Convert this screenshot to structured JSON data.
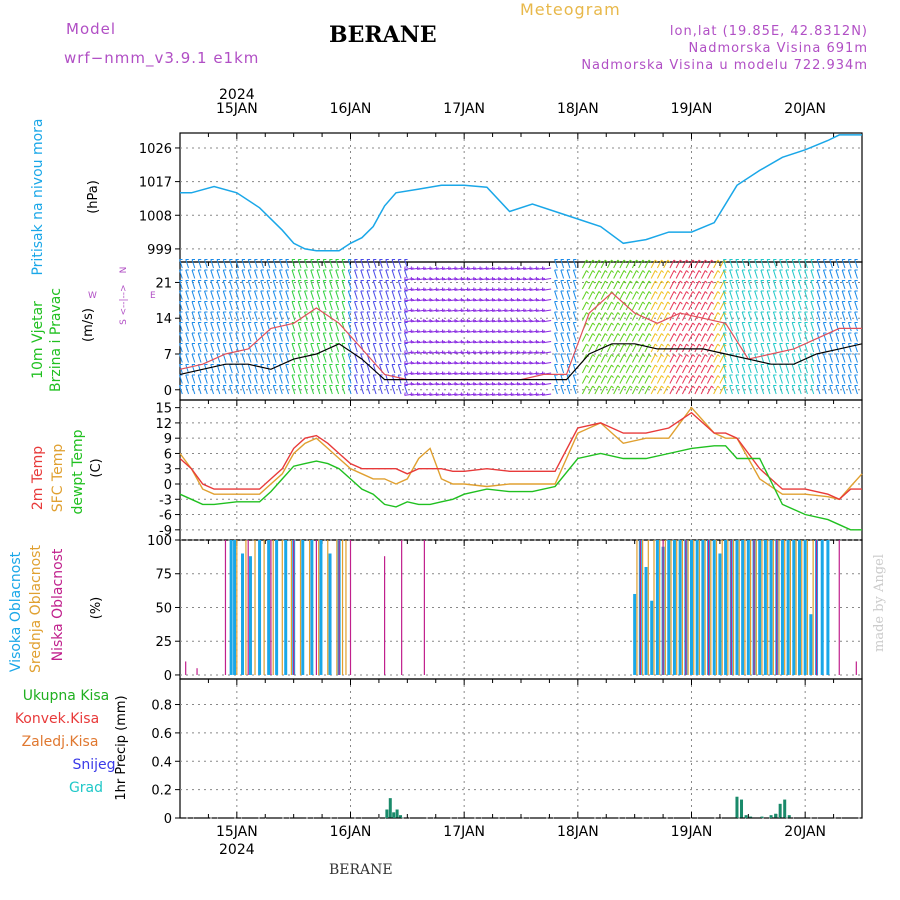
{
  "header": {
    "model_label": "Model",
    "model_name": "wrf−nmm_v3.9.1 e1km",
    "station": "BERANE",
    "title": "Meteogram",
    "lonlat": "lon,lat (19.85E, 42.8312N)",
    "elevation": "Nadmorska Visina 691m",
    "model_elevation": "Nadmorska Visina u modelu 722.934m",
    "footer_station": "BERANE",
    "watermark": "made by Angel"
  },
  "colors": {
    "pressure": "#1aa7e8",
    "temp2m": "#e83a3a",
    "sfc": "#e0a030",
    "dewpt": "#20c020",
    "high": "#1aa7e8",
    "mid": "#e0a030",
    "low": "#c0208c",
    "purple": "#b14fc5"
  },
  "chart_data": [
    {
      "type": "line",
      "x_axis": {
        "top_year": "2024",
        "bottom_year": "2024",
        "dates": [
          "15JAN",
          "16JAN",
          "17JAN",
          "18JAN",
          "19JAN",
          "20JAN"
        ],
        "range_days": [
          -0.5,
          5.5
        ]
      },
      "ylabel": "(hPa)",
      "title_side": "Pritisak na nivou mora",
      "yticks": [
        999,
        1008,
        1017,
        1026
      ],
      "ylim": [
        995.5,
        1030
      ],
      "series": [
        {
          "key": "pressure",
          "x": [
            -0.5,
            -0.4,
            -0.2,
            0,
            0.2,
            0.4,
            0.5,
            0.6,
            0.7,
            0.9,
            1.0,
            1.1,
            1.2,
            1.3,
            1.4,
            1.6,
            1.8,
            2.0,
            2.2,
            2.4,
            2.6,
            2.8,
            3.0,
            3.2,
            3.4,
            3.6,
            3.8,
            4.0,
            4.2,
            4.4,
            4.6,
            4.8,
            5.0,
            5.2,
            5.3,
            5.4,
            5.5
          ],
          "y": [
            1014,
            1014,
            1015.7,
            1014,
            1010,
            1004,
            1000.5,
            999,
            998.5,
            998.5,
            1000.5,
            1002,
            1005,
            1010.5,
            1014,
            1015,
            1016,
            1016,
            1015.5,
            1009,
            1011,
            1009,
            1007,
            1005,
            1000.5,
            1001.5,
            1003.5,
            1003.5,
            1006,
            1016,
            1020,
            1023.5,
            1025.5,
            1028,
            1029.5,
            1029.5,
            1029.5
          ]
        }
      ]
    },
    {
      "type": "line",
      "ylabel": "(m/s)",
      "title_side": [
        "10m Vjetar",
        "Brzina i Pravac"
      ],
      "direction_legend": [
        "N",
        "<--|-->",
        "W",
        "E",
        "S"
      ],
      "yticks": [
        0,
        7,
        14,
        21
      ],
      "ylim": [
        -2,
        25
      ],
      "series": [
        {
          "key": "wind_speed",
          "x": [
            -0.5,
            -0.3,
            -0.1,
            0.1,
            0.3,
            0.5,
            0.7,
            0.9,
            1.1,
            1.3,
            1.5,
            1.7,
            1.9,
            2.1,
            2.3,
            2.5,
            2.7,
            2.9,
            3.1,
            3.3,
            3.5,
            3.7,
            3.9,
            4.1,
            4.3,
            4.5,
            4.7,
            4.9,
            5.1,
            5.3,
            5.5
          ],
          "y": [
            3,
            4,
            5,
            5,
            4,
            6,
            7,
            9,
            6,
            2,
            2,
            2,
            2,
            2,
            2,
            2,
            2,
            2,
            7,
            9,
            9,
            8,
            8,
            8,
            7,
            6,
            5,
            5,
            7,
            8,
            9
          ]
        },
        {
          "key": "wind_gust",
          "x": [
            -0.5,
            -0.3,
            -0.1,
            0.1,
            0.3,
            0.5,
            0.7,
            0.9,
            1.1,
            1.3,
            1.5,
            1.7,
            1.9,
            2.1,
            2.3,
            2.5,
            2.7,
            2.9,
            3.1,
            3.3,
            3.5,
            3.7,
            3.9,
            4.1,
            4.3,
            4.5,
            4.7,
            4.9,
            5.1,
            5.3,
            5.5
          ],
          "y": [
            4,
            5,
            7,
            8,
            12,
            13,
            16,
            13,
            8,
            3,
            2,
            2,
            2,
            2,
            2,
            2,
            3,
            3,
            15,
            19,
            15,
            13,
            15,
            14,
            13,
            6,
            7,
            8,
            10,
            12,
            12
          ]
        }
      ]
    },
    {
      "type": "line",
      "ylabel": "(C)",
      "title_side": [
        "2m Temp",
        "SFC Temp",
        "dewpt Temp"
      ],
      "yticks": [
        -9,
        -6,
        -3,
        0,
        3,
        6,
        9,
        12,
        15
      ],
      "ylim": [
        -11,
        16.5
      ],
      "series": [
        {
          "key": "temp2m",
          "x": [
            -0.5,
            -0.4,
            -0.3,
            -0.2,
            0,
            0.2,
            0.3,
            0.4,
            0.5,
            0.6,
            0.7,
            0.8,
            0.9,
            1.0,
            1.1,
            1.2,
            1.3,
            1.4,
            1.5,
            1.6,
            1.7,
            1.8,
            1.9,
            2.0,
            2.2,
            2.4,
            2.6,
            2.8,
            3.0,
            3.2,
            3.4,
            3.6,
            3.8,
            4.0,
            4.2,
            4.3,
            4.4,
            4.6,
            4.8,
            5.0,
            5.2,
            5.3,
            5.4,
            5.5
          ],
          "y": [
            5,
            3,
            0,
            -1,
            -1,
            -1,
            1,
            3,
            7,
            9,
            9.5,
            8,
            6,
            4,
            3,
            3,
            3,
            3,
            2,
            3,
            3,
            3,
            2.5,
            2.5,
            3,
            2.5,
            2.5,
            2.5,
            11,
            12,
            10,
            10,
            11,
            14,
            10,
            10,
            9,
            3,
            -1,
            -1,
            -2,
            -3,
            -1,
            -1
          ]
        },
        {
          "key": "sfc",
          "x": [
            -0.5,
            -0.4,
            -0.3,
            -0.2,
            0,
            0.2,
            0.3,
            0.4,
            0.5,
            0.6,
            0.7,
            0.8,
            0.9,
            1.0,
            1.1,
            1.2,
            1.3,
            1.4,
            1.5,
            1.6,
            1.7,
            1.8,
            1.9,
            2.0,
            2.2,
            2.4,
            2.6,
            2.8,
            3.0,
            3.2,
            3.4,
            3.6,
            3.8,
            4.0,
            4.2,
            4.3,
            4.4,
            4.6,
            4.8,
            5.0,
            5.2,
            5.3,
            5.4,
            5.5
          ],
          "y": [
            6,
            3,
            -1,
            -2,
            -2,
            -2,
            0,
            2,
            6,
            8,
            9,
            7,
            5,
            3,
            2,
            1,
            1,
            0,
            1,
            5,
            7,
            1,
            0,
            0,
            -0.5,
            0,
            0,
            0,
            10,
            12,
            8,
            9,
            9,
            15,
            10,
            9,
            9,
            1,
            -2,
            -2,
            -2.5,
            -3,
            -0.5,
            2
          ]
        },
        {
          "key": "dewpt",
          "x": [
            -0.5,
            -0.4,
            -0.3,
            -0.2,
            0,
            0.2,
            0.3,
            0.4,
            0.5,
            0.6,
            0.7,
            0.8,
            0.9,
            1.0,
            1.1,
            1.2,
            1.3,
            1.4,
            1.5,
            1.6,
            1.7,
            1.8,
            1.9,
            2.0,
            2.2,
            2.4,
            2.6,
            2.8,
            3.0,
            3.2,
            3.4,
            3.6,
            3.8,
            4.0,
            4.2,
            4.3,
            4.4,
            4.6,
            4.8,
            5.0,
            5.2,
            5.3,
            5.4,
            5.5
          ],
          "y": [
            -2,
            -3,
            -4,
            -4,
            -3.5,
            -3.5,
            -1.5,
            1,
            3.5,
            4,
            4.5,
            4,
            3,
            1,
            -1,
            -2,
            -4,
            -4.5,
            -3.5,
            -4,
            -4,
            -3.5,
            -3,
            -2,
            -1,
            -1.5,
            -1.5,
            -0.5,
            5,
            6,
            5,
            5,
            6,
            7,
            7.5,
            7.5,
            5,
            5,
            -4,
            -6,
            -7,
            -8,
            -9,
            -9
          ]
        }
      ]
    },
    {
      "type": "bar",
      "ylabel": "(%)",
      "title_side": [
        "Visoka Oblacnost",
        "Srednja Oblacnost",
        "Niska Oblacnost"
      ],
      "yticks": [
        0,
        25,
        50,
        75,
        100
      ],
      "ylim": [
        -3,
        100
      ],
      "series": [
        {
          "key": "high",
          "x": [
            -0.05,
            -0.02,
            0.05,
            0.12,
            0.2,
            0.28,
            0.35,
            0.43,
            0.5,
            0.58,
            0.66,
            0.74,
            0.82,
            0.9,
            3.5,
            3.55,
            3.6,
            3.65,
            3.7,
            3.75,
            3.8,
            3.85,
            3.9,
            3.95,
            4.0,
            4.05,
            4.1,
            4.15,
            4.2,
            4.25,
            4.3,
            4.35,
            4.4,
            4.45,
            4.5,
            4.55,
            4.6,
            4.65,
            4.7,
            4.75,
            4.8,
            4.85,
            4.9,
            4.95,
            5.0,
            5.05,
            5.1,
            5.15,
            5.2
          ],
          "values": [
            100,
            100,
            90,
            88,
            100,
            100,
            100,
            100,
            100,
            100,
            100,
            100,
            90,
            100,
            60,
            100,
            80,
            55,
            100,
            95,
            100,
            100,
            100,
            100,
            100,
            100,
            100,
            100,
            100,
            90,
            100,
            100,
            100,
            100,
            100,
            100,
            100,
            100,
            100,
            100,
            100,
            100,
            100,
            100,
            100,
            45,
            100,
            100,
            100
          ]
        },
        {
          "key": "mid",
          "x": [
            0.0,
            0.08,
            0.16,
            0.24,
            0.32,
            0.4,
            0.48,
            0.56,
            0.64,
            0.72,
            0.8,
            0.88,
            0.93,
            0.96,
            3.52,
            3.57,
            3.62,
            3.67,
            3.72,
            3.77,
            3.82,
            3.87,
            3.92,
            3.97,
            4.02,
            4.07,
            4.12,
            4.17,
            4.22,
            4.27,
            4.32,
            4.37,
            4.42,
            4.47,
            4.52,
            4.57,
            4.62,
            4.67,
            4.72,
            4.77,
            4.82,
            4.87,
            4.92,
            4.97,
            5.02,
            5.07
          ],
          "values": [
            100,
            100,
            100,
            100,
            100,
            100,
            100,
            100,
            100,
            100,
            100,
            100,
            100,
            100,
            100,
            100,
            100,
            100,
            100,
            100,
            100,
            100,
            100,
            100,
            100,
            100,
            100,
            100,
            100,
            100,
            100,
            100,
            100,
            100,
            100,
            100,
            100,
            100,
            100,
            100,
            100,
            100,
            100,
            100,
            100,
            100
          ]
        },
        {
          "key": "low",
          "x": [
            -0.45,
            -0.35,
            -0.1,
            0.1,
            0.3,
            0.5,
            0.7,
            0.9,
            1.0,
            1.3,
            1.45,
            1.65,
            3.55,
            3.75,
            3.95,
            4.15,
            4.35,
            4.55,
            4.75,
            5.1,
            5.3,
            5.45
          ],
          "values": [
            10,
            5,
            100,
            100,
            100,
            100,
            100,
            100,
            100,
            88,
            100,
            100,
            100,
            100,
            100,
            100,
            100,
            100,
            100,
            100,
            100,
            10
          ]
        }
      ]
    },
    {
      "type": "bar",
      "ylabel": "1hr Precip (mm)",
      "legend": [
        "Ukupna Kisa",
        "Konvek.Kisa",
        "Zaledj.Kisa",
        "Snijeg",
        "Grad"
      ],
      "yticks": [
        0,
        0.2,
        0.4,
        0.6,
        0.8
      ],
      "ylim": [
        0,
        0.98
      ],
      "series": [
        {
          "key": "total_rain",
          "x": [
            1.32,
            1.35,
            1.38,
            1.41,
            1.44,
            4.4,
            4.44,
            4.48,
            4.52,
            4.62,
            4.7,
            4.74,
            4.78,
            4.82,
            4.86
          ],
          "values": [
            0.06,
            0.14,
            0.04,
            0.06,
            0.02,
            0.15,
            0.13,
            0.02,
            0.01,
            0.01,
            0.02,
            0.03,
            0.1,
            0.13,
            0.02
          ]
        }
      ]
    }
  ]
}
